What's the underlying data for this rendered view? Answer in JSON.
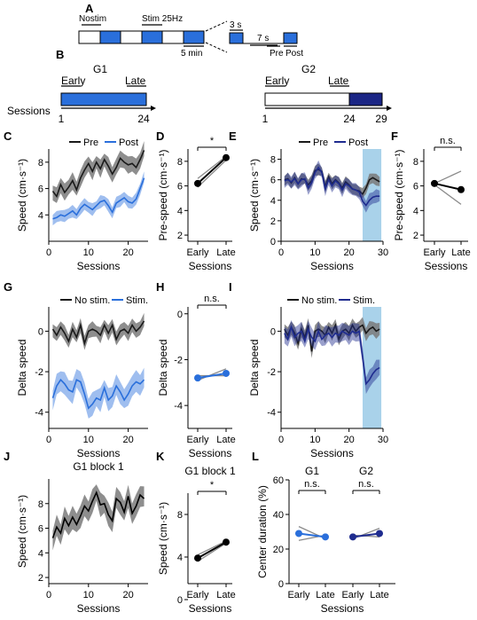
{
  "figure": {
    "panel_labels": [
      "A",
      "B",
      "C",
      "D",
      "E",
      "F",
      "G",
      "H",
      "I",
      "J",
      "K",
      "L"
    ],
    "colors": {
      "pre": "#1a1a1a",
      "g1_post": "#2a6fdb",
      "g2_post": "#1f2c8f",
      "band_grey": "#7a7a7a",
      "stim_band": "#a9d2ea",
      "block_light": "#2a6fdb",
      "block_dark": "#1a2585"
    },
    "schematic_a": {
      "nostim": "Nostim",
      "stim": "Stim 25Hz",
      "five_min": "5 min",
      "three_s": "3 s",
      "seven_s": "7 s",
      "pre": "Pre",
      "post": "Post"
    },
    "schematic_b": {
      "g1": {
        "title": "G1",
        "early": "Early",
        "late": "Late",
        "start": "1",
        "end": "24"
      },
      "g2": {
        "title": "G2",
        "early": "Early",
        "late": "Late",
        "start": "1",
        "mid": "24",
        "end": "29"
      },
      "sessions": "Sessions"
    }
  },
  "chart_data": [
    {
      "panel": "C",
      "type": "line",
      "legend": [
        "Pre",
        "Post"
      ],
      "xlabel": "Sessions",
      "ylabel": "Speed (cm·s⁻¹)",
      "xlim": [
        0,
        25
      ],
      "ylim": [
        2,
        9
      ],
      "xticks": [
        0,
        10,
        20
      ],
      "yticks": [
        4,
        6,
        8
      ],
      "x": [
        1,
        2,
        3,
        4,
        5,
        6,
        7,
        8,
        9,
        10,
        11,
        12,
        13,
        14,
        15,
        16,
        17,
        18,
        19,
        20,
        21,
        22,
        23,
        24
      ],
      "series": [
        {
          "name": "Pre",
          "values": [
            5.8,
            5.4,
            6.3,
            5.7,
            6.1,
            6.6,
            5.9,
            6.8,
            7.4,
            7.9,
            7.3,
            8.0,
            7.5,
            8.2,
            7.7,
            7.1,
            7.6,
            8.3,
            8.0,
            7.8,
            7.9,
            7.6,
            8.2,
            8.9
          ],
          "band": 0.7
        },
        {
          "name": "Post",
          "values": [
            3.7,
            3.8,
            4.0,
            3.9,
            4.1,
            4.3,
            4.0,
            4.5,
            4.8,
            4.6,
            4.4,
            4.7,
            5.0,
            5.1,
            4.7,
            4.2,
            4.9,
            5.1,
            5.3,
            5.0,
            4.9,
            5.2,
            6.0,
            6.8
          ],
          "band": 0.5
        }
      ]
    },
    {
      "panel": "D",
      "type": "line",
      "categories": [
        "Early",
        "Late"
      ],
      "xlabel": "Sessions",
      "ylabel": "Pre-speed (cm·s⁻¹)",
      "ylim": [
        1.5,
        9
      ],
      "yticks": [
        2,
        4,
        6,
        8
      ],
      "mean": [
        6.2,
        8.3
      ],
      "individuals": [
        [
          5.9,
          8.1
        ],
        [
          6.6,
          8.4
        ]
      ],
      "significance": "*"
    },
    {
      "panel": "E",
      "type": "line",
      "legend": [
        "Pre",
        "Post"
      ],
      "xlabel": "Sessions",
      "ylabel": "Speed (cm·s⁻¹)",
      "xlim": [
        0,
        30
      ],
      "ylim": [
        0,
        9
      ],
      "xticks": [
        0,
        10,
        20,
        30
      ],
      "yticks": [
        0,
        2,
        4,
        6,
        8
      ],
      "stim_shade": [
        24,
        29
      ],
      "x": [
        1,
        2,
        3,
        4,
        5,
        6,
        7,
        8,
        9,
        10,
        11,
        12,
        13,
        14,
        15,
        16,
        17,
        18,
        19,
        20,
        21,
        22,
        23,
        24,
        25,
        26,
        27,
        28,
        29
      ],
      "series": [
        {
          "name": "Pre",
          "values": [
            6.0,
            6.1,
            5.7,
            6.2,
            5.6,
            6.1,
            6.0,
            5.5,
            5.9,
            6.9,
            7.0,
            6.8,
            5.3,
            6.3,
            5.6,
            6.0,
            5.7,
            5.2,
            5.8,
            5.5,
            5.1,
            5.0,
            4.9,
            4.6,
            5.2,
            6.0,
            6.2,
            6.0,
            5.8
          ],
          "band": 0.6
        },
        {
          "name": "Post",
          "values": [
            5.9,
            6.0,
            5.8,
            6.1,
            5.6,
            6.0,
            6.1,
            5.2,
            5.7,
            6.7,
            7.2,
            6.7,
            5.1,
            6.0,
            5.4,
            5.9,
            5.6,
            5.0,
            5.6,
            5.4,
            5.1,
            5.0,
            4.8,
            3.9,
            3.5,
            4.0,
            4.3,
            4.4,
            4.4
          ],
          "band": 0.7
        }
      ]
    },
    {
      "panel": "F",
      "type": "line",
      "categories": [
        "Early",
        "Late"
      ],
      "xlabel": "Sessions",
      "ylabel": "Pre-speed (cm·s⁻¹)",
      "ylim": [
        1.5,
        9
      ],
      "yticks": [
        2,
        4,
        6,
        8
      ],
      "mean": [
        6.2,
        5.7
      ],
      "individuals": [
        [
          6.2,
          7.2
        ],
        [
          6.1,
          4.5
        ]
      ],
      "significance": "n.s."
    },
    {
      "panel": "G",
      "type": "line",
      "legend": [
        "No stim.",
        "Stim."
      ],
      "xlabel": "Sessions",
      "ylabel": "Delta speed",
      "xlim": [
        0,
        25
      ],
      "ylim": [
        -4.8,
        1.2
      ],
      "xticks": [
        0,
        10,
        20
      ],
      "yticks": [
        0,
        -2,
        -4
      ],
      "x": [
        1,
        2,
        3,
        4,
        5,
        6,
        7,
        8,
        9,
        10,
        11,
        12,
        13,
        14,
        15,
        16,
        17,
        18,
        19,
        20,
        21,
        22,
        23,
        24
      ],
      "series": [
        {
          "name": "No stim.",
          "values": [
            0.1,
            -0.2,
            0.2,
            -0.1,
            -0.5,
            0.1,
            -0.3,
            0.3,
            -0.6,
            0.0,
            0.1,
            0.0,
            -0.2,
            0.3,
            -0.1,
            0.3,
            -0.4,
            0.0,
            0.1,
            -0.1,
            0.3,
            0.0,
            0.2,
            0.5
          ],
          "band": 0.4
        },
        {
          "name": "Stim.",
          "values": [
            -3.3,
            -2.7,
            -2.4,
            -2.6,
            -2.9,
            -3.0,
            -2.4,
            -2.5,
            -3.1,
            -3.8,
            -3.6,
            -3.3,
            -3.4,
            -2.8,
            -3.4,
            -3.2,
            -2.7,
            -3.0,
            -3.4,
            -3.1,
            -2.7,
            -2.5,
            -2.6,
            -2.4
          ],
          "band": 0.6
        }
      ]
    },
    {
      "panel": "H",
      "type": "line",
      "categories": [
        "Early",
        "Late"
      ],
      "xlabel": "Sessions",
      "ylabel": "Delta speed",
      "ylim": [
        -5,
        0.3
      ],
      "yticks": [
        0,
        -2,
        -4
      ],
      "mean": [
        -2.8,
        -2.6
      ],
      "individuals": [
        [
          -2.9,
          -2.4
        ],
        [
          -2.7,
          -2.7
        ]
      ],
      "significance": "n.s."
    },
    {
      "panel": "I",
      "type": "line",
      "legend": [
        "No stim.",
        "Stim."
      ],
      "xlabel": "Sessions",
      "ylabel": "Delta speed",
      "xlim": [
        0,
        30
      ],
      "ylim": [
        -4.8,
        1.2
      ],
      "xticks": [
        0,
        10,
        20,
        30
      ],
      "yticks": [
        0,
        -2,
        -4
      ],
      "stim_shade": [
        24,
        29
      ],
      "x": [
        1,
        2,
        3,
        4,
        5,
        6,
        7,
        8,
        9,
        10,
        11,
        12,
        13,
        14,
        15,
        16,
        17,
        18,
        19,
        20,
        21,
        22,
        23,
        24,
        25,
        26,
        27,
        28,
        29
      ],
      "series": [
        {
          "name": "No stim.",
          "values": [
            0.1,
            -0.2,
            0.2,
            -0.1,
            -0.6,
            0.1,
            -0.3,
            0.3,
            -1.0,
            0.0,
            0.1,
            0.0,
            -0.2,
            0.2,
            -0.1,
            0.3,
            -0.4,
            0.0,
            0.1,
            -0.1,
            0.3,
            0.0,
            0.2,
            0.3,
            -0.1,
            0.1,
            0.2,
            0.0,
            0.1
          ],
          "band": 0.4
        },
        {
          "name": "Stim.",
          "values": [
            -0.1,
            -0.4,
            0.2,
            -0.3,
            -0.1,
            0.0,
            -0.5,
            0.1,
            -0.3,
            -0.5,
            0.0,
            -0.4,
            -0.2,
            -0.1,
            -0.3,
            -0.1,
            -0.2,
            0.0,
            -0.1,
            -0.2,
            0.0,
            -0.1,
            0.0,
            -1.3,
            -2.6,
            -2.4,
            -2.1,
            -1.9,
            -1.8
          ],
          "band": 0.5
        }
      ]
    },
    {
      "panel": "J",
      "type": "line",
      "title": "G1 block 1",
      "xlabel": "Sessions",
      "ylabel": "Speed (cm·s⁻¹)",
      "xlim": [
        0,
        25
      ],
      "ylim": [
        1.5,
        10
      ],
      "xticks": [
        0,
        10,
        20
      ],
      "yticks": [
        2,
        4,
        6,
        8
      ],
      "x": [
        1,
        2,
        3,
        4,
        5,
        6,
        7,
        8,
        9,
        10,
        11,
        12,
        13,
        14,
        15,
        16,
        17,
        18,
        19,
        20,
        21,
        22,
        23,
        24
      ],
      "series": [
        {
          "name": "",
          "values": [
            5.2,
            6.1,
            5.6,
            6.8,
            6.2,
            6.9,
            6.3,
            7.0,
            7.8,
            7.4,
            8.2,
            8.9,
            7.9,
            8.0,
            7.1,
            6.6,
            8.4,
            8.1,
            7.3,
            8.6,
            7.2,
            7.8,
            8.7,
            8.4
          ],
          "band": 1.0
        }
      ]
    },
    {
      "panel": "K",
      "type": "line",
      "title": "G1 block 1",
      "categories": [
        "Early",
        "Late"
      ],
      "xlabel": "Sessions",
      "ylabel": "Speed (cm·s⁻¹)",
      "ylim": [
        1.5,
        10
      ],
      "yticks": [
        0,
        4,
        8
      ],
      "mean": [
        3.9,
        5.4
      ],
      "individuals": [
        [
          3.6,
          5.3
        ],
        [
          4.2,
          5.5
        ]
      ],
      "significance": "*"
    },
    {
      "panel": "L",
      "type": "line",
      "groups": [
        "G1",
        "G2"
      ],
      "categories": [
        "Early",
        "Late"
      ],
      "xlabel": "Sessions",
      "ylabel": "Center duration (%)",
      "ylim": [
        0,
        60
      ],
      "yticks": [
        0,
        20,
        40,
        60
      ],
      "g1": {
        "mean": [
          29,
          27
        ],
        "individuals": [
          [
            33,
            26
          ],
          [
            25,
            28
          ]
        ],
        "significance": "n.s."
      },
      "g2": {
        "mean": [
          27,
          29
        ],
        "individuals": [
          [
            26,
            32
          ],
          [
            28,
            27
          ]
        ],
        "significance": "n.s."
      }
    }
  ]
}
